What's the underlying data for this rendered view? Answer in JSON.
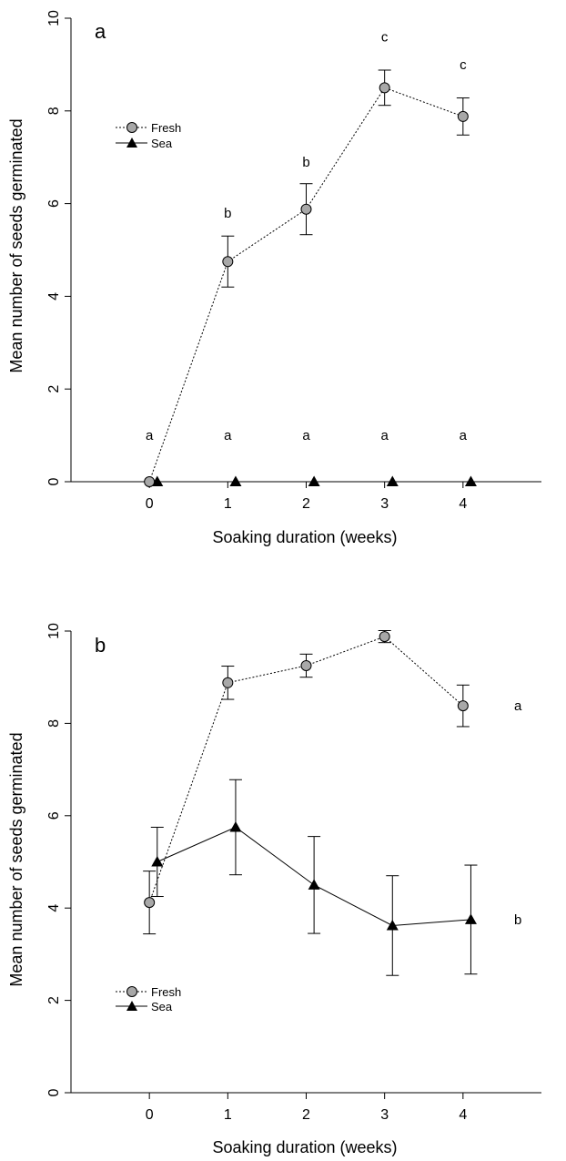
{
  "chart_data": [
    {
      "type": "line",
      "panel_label": "a",
      "xlabel": "Soaking duration (weeks)",
      "ylabel": "Mean number of seeds germinated",
      "x_ticks": [
        0,
        1,
        2,
        3,
        4
      ],
      "y_ticks": [
        0,
        2,
        4,
        6,
        8,
        10
      ],
      "xlim": [
        -1,
        5
      ],
      "ylim": [
        0,
        10
      ],
      "grid": false,
      "legend": {
        "position": "upper-left",
        "entries": [
          "Fresh",
          "Sea"
        ]
      },
      "series": [
        {
          "name": "Fresh",
          "marker": "circle",
          "marker_color": "#a8a8a8",
          "line_style": "dotted",
          "x": [
            0,
            1,
            2,
            3,
            4
          ],
          "y": [
            0.0,
            4.75,
            5.88,
            8.5,
            7.88
          ],
          "error": [
            0,
            0.55,
            0.55,
            0.38,
            0.4
          ]
        },
        {
          "name": "Sea",
          "marker": "triangle",
          "marker_color": "#000000",
          "line_style": "solid",
          "x": [
            0,
            1,
            2,
            3,
            4
          ],
          "y": [
            0,
            0,
            0,
            0,
            0
          ],
          "error": [
            0,
            0,
            0,
            0,
            0
          ]
        }
      ],
      "annotations": [
        {
          "x": 0,
          "y": 1.0,
          "text": "a"
        },
        {
          "x": 1,
          "y": 1.0,
          "text": "a"
        },
        {
          "x": 2,
          "y": 1.0,
          "text": "a"
        },
        {
          "x": 3,
          "y": 1.0,
          "text": "a"
        },
        {
          "x": 4,
          "y": 1.0,
          "text": "a"
        },
        {
          "x": 1,
          "y": 5.8,
          "text": "b"
        },
        {
          "x": 2,
          "y": 6.9,
          "text": "b"
        },
        {
          "x": 3,
          "y": 9.6,
          "text": "c"
        },
        {
          "x": 4,
          "y": 9.0,
          "text": "c"
        }
      ]
    },
    {
      "type": "line",
      "panel_label": "b",
      "xlabel": "Soaking duration (weeks)",
      "ylabel": "Mean number of seeds germinated",
      "x_ticks": [
        0,
        1,
        2,
        3,
        4
      ],
      "y_ticks": [
        0,
        2,
        4,
        6,
        8,
        10
      ],
      "xlim": [
        -1,
        5
      ],
      "ylim": [
        0,
        10
      ],
      "grid": false,
      "legend": {
        "position": "lower-left",
        "entries": [
          "Fresh",
          "Sea"
        ]
      },
      "series": [
        {
          "name": "Fresh",
          "marker": "circle",
          "marker_color": "#a8a8a8",
          "line_style": "dotted",
          "x": [
            0,
            1,
            2,
            3,
            4
          ],
          "y": [
            4.12,
            8.88,
            9.25,
            9.88,
            8.38
          ],
          "error": [
            0.68,
            0.36,
            0.25,
            0.13,
            0.45
          ]
        },
        {
          "name": "Sea",
          "marker": "triangle",
          "marker_color": "#000000",
          "line_style": "solid",
          "x": [
            0,
            1,
            2,
            3,
            4
          ],
          "y": [
            5.0,
            5.75,
            4.5,
            3.62,
            3.75
          ],
          "error": [
            0.75,
            1.03,
            1.05,
            1.08,
            1.18
          ]
        }
      ],
      "annotations": [
        {
          "x": 4.7,
          "y": 8.38,
          "text": "a"
        },
        {
          "x": 4.7,
          "y": 3.75,
          "text": "b"
        }
      ]
    }
  ]
}
